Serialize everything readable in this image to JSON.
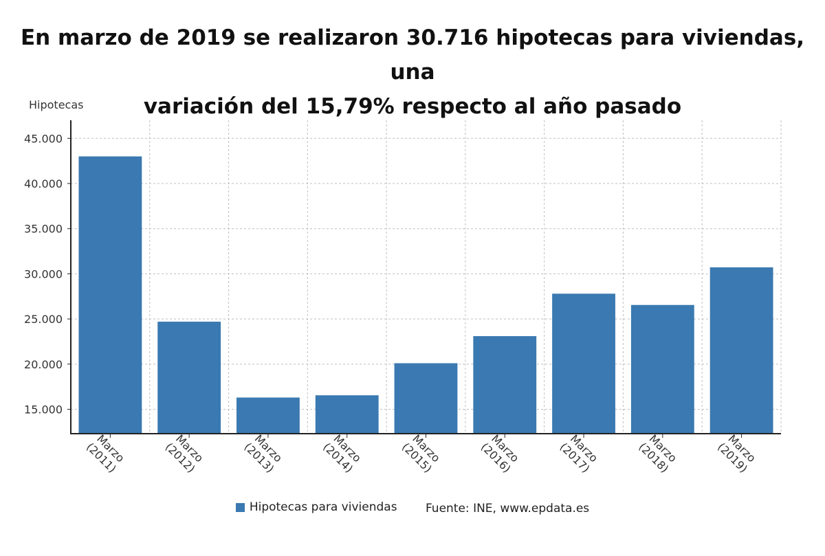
{
  "chart_data": {
    "type": "bar",
    "title_lines": [
      "En marzo de 2019 se realizaron 30.716 hipotecas para viviendas, una",
      "variación del 15,79% respecto al año pasado"
    ],
    "ylabel": "Hipotecas",
    "xlabel": "",
    "categories": [
      "Marzo (2011)",
      "Marzo (2012)",
      "Marzo (2013)",
      "Marzo (2014)",
      "Marzo (2015)",
      "Marzo (2016)",
      "Marzo (2017)",
      "Marzo (2018)",
      "Marzo (2019)"
    ],
    "category_lines": [
      [
        "Marzo",
        "(2011)"
      ],
      [
        "Marzo",
        "(2012)"
      ],
      [
        "Marzo",
        "(2013)"
      ],
      [
        "Marzo",
        "(2014)"
      ],
      [
        "Marzo",
        "(2015)"
      ],
      [
        "Marzo",
        "(2016)"
      ],
      [
        "Marzo",
        "(2017)"
      ],
      [
        "Marzo",
        "(2018)"
      ],
      [
        "Marzo",
        "(2019)"
      ]
    ],
    "series": [
      {
        "name": "Hipotecas para viviendas",
        "values": [
          43000,
          24700,
          16300,
          16550,
          20100,
          23100,
          27800,
          26550,
          30716
        ]
      }
    ],
    "ylim": [
      12300,
      47000
    ],
    "yticks": [
      15000,
      20000,
      25000,
      30000,
      35000,
      40000,
      45000
    ],
    "ytick_labels": [
      "15.000",
      "20.000",
      "25.000",
      "30.000",
      "35.000",
      "40.000",
      "45.000"
    ],
    "grid": true,
    "legend_position": "bottom",
    "source": "Fuente: INE, www.epdata.es",
    "colors": {
      "bar": "#3a79b1",
      "grid": "#bfbfbf",
      "axis": "#222222"
    }
  }
}
